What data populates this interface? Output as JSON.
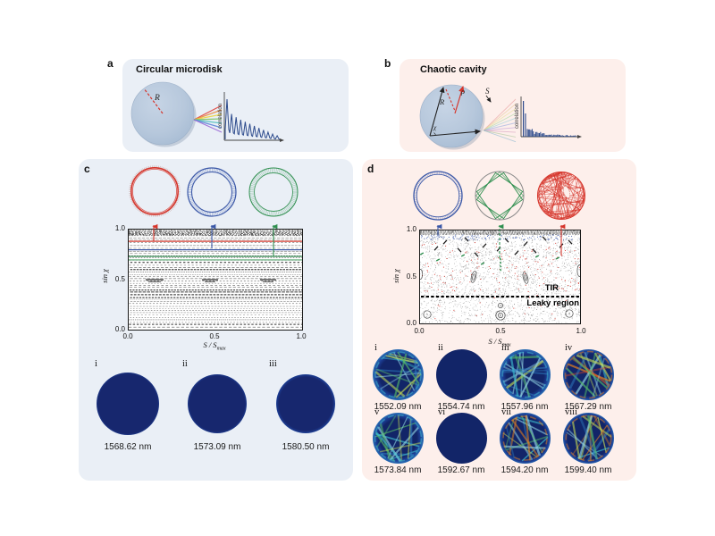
{
  "figure": {
    "panel_a": {
      "label": "a",
      "title": "Circular microdisk",
      "radius_label": "R",
      "correlation_label": "correlation",
      "spectrum_peaks": [
        1.0,
        0.64,
        0.56,
        0.5,
        0.45,
        0.4,
        0.35,
        0.3,
        0.25,
        0.2,
        0.15,
        0.11
      ]
    },
    "panel_b": {
      "label": "b",
      "title": "Chaotic cavity",
      "radius_label": "R",
      "rho_label": "ρ",
      "arclength_label": "S",
      "angle_label": "χ",
      "correlation_label": "correlation"
    },
    "panel_c": {
      "label": "c",
      "phase_space": {
        "ylabel": "sin χ",
        "xlabel": "S / S",
        "xlabel_sub": "max",
        "yticks": [
          "1.0",
          "0.5",
          "0.0"
        ],
        "xticks": [
          "0.0",
          "0.5",
          "1.0"
        ],
        "mode_lines_sin_chi": {
          "red": 0.89,
          "blue": 0.8,
          "green": 0.74
        }
      },
      "modes": [
        {
          "numeral": "i",
          "wavelength": "1568.62 nm"
        },
        {
          "numeral": "ii",
          "wavelength": "1573.09 nm"
        },
        {
          "numeral": "iii",
          "wavelength": "1580.50 nm"
        }
      ]
    },
    "panel_d": {
      "label": "d",
      "phase_space": {
        "ylabel": "sin χ",
        "xlabel": "S / S",
        "xlabel_sub": "max",
        "yticks": [
          "1.0",
          "0.5",
          "0.0"
        ],
        "xticks": [
          "0.0",
          "0.5",
          "1.0"
        ],
        "tir_label": "TIR",
        "leaky_label": "Leaky region",
        "tir_line_sin_chi": 0.3
      },
      "modes": [
        {
          "numeral": "i",
          "wavelength": "1552.09 nm"
        },
        {
          "numeral": "ii",
          "wavelength": "1554.74 nm"
        },
        {
          "numeral": "iii",
          "wavelength": "1557.96 nm"
        },
        {
          "numeral": "iv",
          "wavelength": "1567.29 nm"
        },
        {
          "numeral": "v",
          "wavelength": "1573.84 nm"
        },
        {
          "numeral": "vi",
          "wavelength": "1592.67 nm"
        },
        {
          "numeral": "vii",
          "wavelength": "1594.20 nm"
        },
        {
          "numeral": "viii",
          "wavelength": "1599.40 nm"
        }
      ]
    },
    "colors": {
      "panel_blue_bg": "#eaeff6",
      "panel_pink_bg": "#fdefeb",
      "red": "#d6352b",
      "blue": "#3a57a7",
      "green": "#2f8f4f",
      "spectrum_blue": "#2c4a8c",
      "orange_ring": "#e5801f",
      "navy_mode": "#15266c"
    }
  }
}
